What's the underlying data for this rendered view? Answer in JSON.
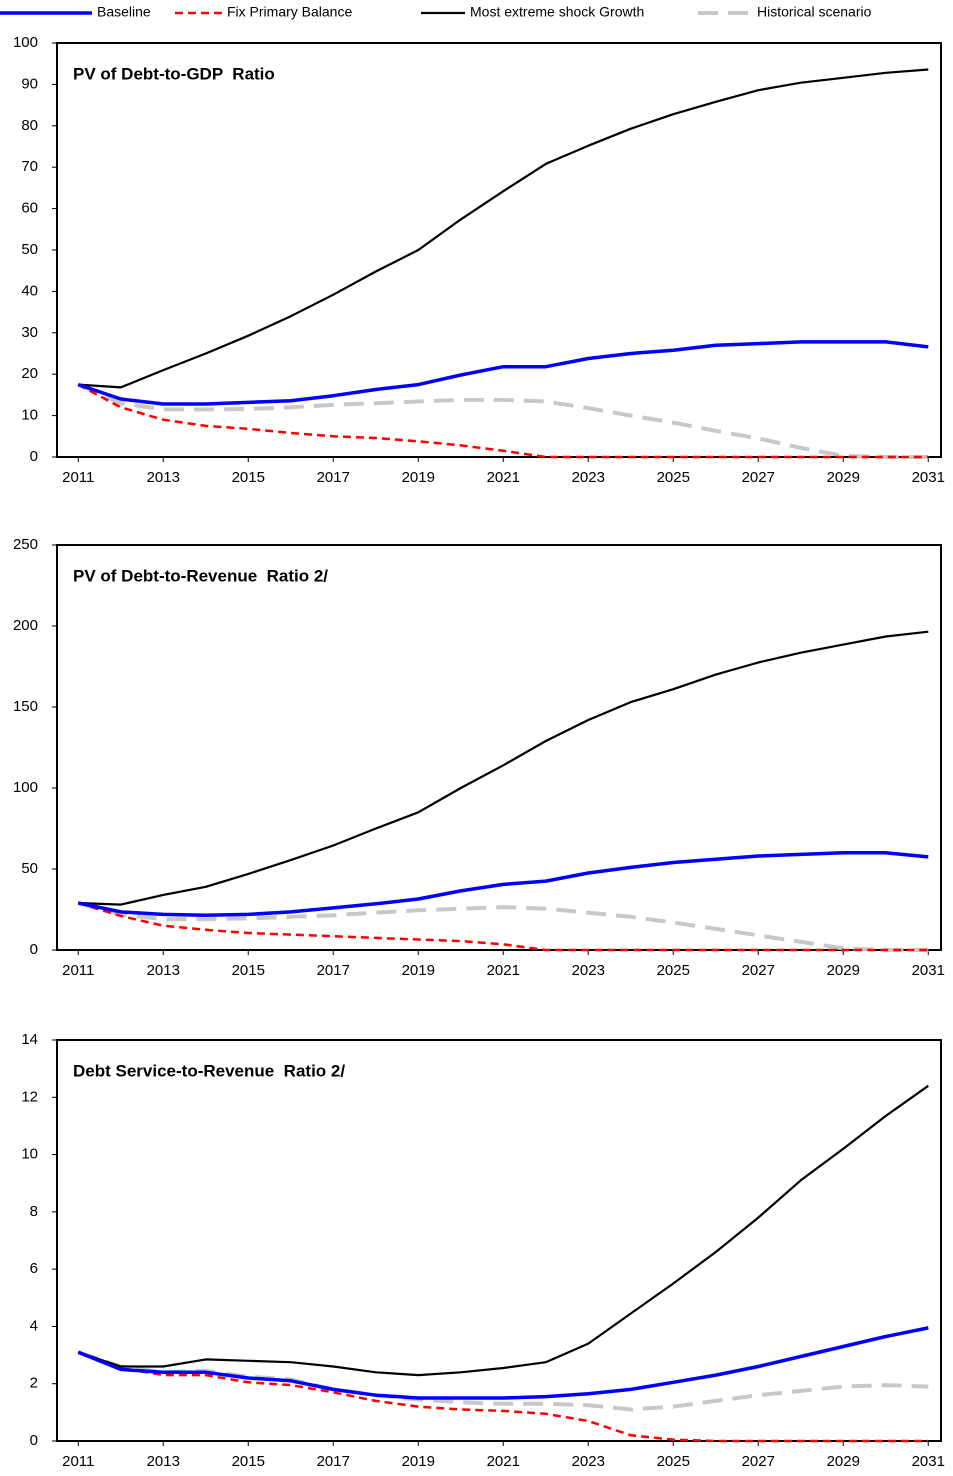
{
  "chart_data": [
    {
      "type": "line",
      "title": "PV of Debt-to-GDP  Ratio",
      "x": [
        2011,
        2012,
        2013,
        2014,
        2015,
        2016,
        2017,
        2018,
        2019,
        2020,
        2021,
        2022,
        2023,
        2024,
        2025,
        2026,
        2027,
        2028,
        2029,
        2030,
        2031
      ],
      "xlim": [
        2010.5,
        2031.3
      ],
      "xticks": [
        2011,
        2013,
        2015,
        2017,
        2019,
        2021,
        2023,
        2025,
        2027,
        2029,
        2031
      ],
      "ylim": [
        0,
        100
      ],
      "yticks": [
        0,
        10,
        20,
        30,
        40,
        50,
        60,
        70,
        80,
        90,
        100
      ],
      "series": [
        {
          "name": "Baseline",
          "color": "#0000ff",
          "values": [
            17.5,
            14,
            12.8,
            12.8,
            13.2,
            13.6,
            14.8,
            16.3,
            17.5,
            19.8,
            21.8,
            21.8,
            23.8,
            25,
            25.8,
            27,
            27.4,
            27.8,
            27.8,
            27.8,
            26.6
          ]
        },
        {
          "name": "Fix Primary Balance",
          "color": "#ff0000",
          "values": [
            17.5,
            12,
            9,
            7.5,
            6.8,
            5.8,
            5,
            4.6,
            3.8,
            2.8,
            1.5,
            0,
            0,
            0,
            0,
            0,
            0,
            0,
            0,
            0,
            0
          ]
        },
        {
          "name": "Most extreme shock Growth",
          "color": "#000000",
          "values": [
            17.5,
            16.8,
            21,
            25,
            29.3,
            34,
            39.2,
            44.8,
            50,
            57.4,
            64.2,
            70.8,
            75.2,
            79.3,
            82.8,
            85.8,
            88.6,
            90.4,
            91.6,
            92.8,
            93.6
          ]
        },
        {
          "name": "Historical scenario",
          "color": "#c8c8c8",
          "values": [
            17.5,
            13,
            11.5,
            11.5,
            11.6,
            12,
            12.6,
            13,
            13.4,
            13.8,
            13.8,
            13.4,
            11.8,
            10,
            8.3,
            6.3,
            4.5,
            2.2,
            0.3,
            0,
            0
          ]
        }
      ]
    },
    {
      "type": "line",
      "title": "PV of Debt-to-Revenue  Ratio 2/",
      "x": [
        2011,
        2012,
        2013,
        2014,
        2015,
        2016,
        2017,
        2018,
        2019,
        2020,
        2021,
        2022,
        2023,
        2024,
        2025,
        2026,
        2027,
        2028,
        2029,
        2030,
        2031
      ],
      "xlim": [
        2010.5,
        2031.3
      ],
      "xticks": [
        2011,
        2013,
        2015,
        2017,
        2019,
        2021,
        2023,
        2025,
        2027,
        2029,
        2031
      ],
      "ylim": [
        0,
        250
      ],
      "yticks": [
        0,
        50,
        100,
        150,
        200,
        250
      ],
      "series": [
        {
          "color": "#0000ff",
          "values": [
            29,
            23.5,
            22,
            21.5,
            22,
            23.5,
            26,
            28.5,
            31.5,
            36.5,
            40.5,
            42.5,
            47.5,
            51,
            54,
            56,
            58,
            59,
            60,
            60,
            57.5
          ]
        },
        {
          "color": "#ff0000",
          "values": [
            29,
            21,
            15,
            12.5,
            10.5,
            9.5,
            8.5,
            7.5,
            6.5,
            5.5,
            3.5,
            0,
            0,
            0,
            0,
            0,
            0,
            0,
            0,
            0,
            0
          ]
        },
        {
          "color": "#000000",
          "values": [
            29,
            28,
            34,
            39,
            47,
            55.5,
            64.5,
            75,
            85,
            100,
            114,
            129,
            142,
            153,
            161,
            170,
            177.5,
            183.5,
            188.5,
            193.5,
            196.5
          ]
        },
        {
          "color": "#c8c8c8",
          "values": [
            29,
            22,
            19,
            19,
            19.5,
            20.5,
            21.5,
            23,
            24.5,
            25.5,
            26.5,
            25.5,
            23,
            20.5,
            17,
            13,
            9,
            5,
            1,
            0,
            0
          ]
        }
      ]
    },
    {
      "type": "line",
      "title": "Debt Service-to-Revenue  Ratio 2/",
      "x": [
        2011,
        2012,
        2013,
        2014,
        2015,
        2016,
        2017,
        2018,
        2019,
        2020,
        2021,
        2022,
        2023,
        2024,
        2025,
        2026,
        2027,
        2028,
        2029,
        2030,
        2031
      ],
      "xlim": [
        2010.5,
        2031.3
      ],
      "xticks": [
        2011,
        2013,
        2015,
        2017,
        2019,
        2021,
        2023,
        2025,
        2027,
        2029,
        2031
      ],
      "ylim": [
        0,
        14
      ],
      "yticks": [
        0,
        2,
        4,
        6,
        8,
        10,
        12,
        14
      ],
      "series": [
        {
          "color": "#0000ff",
          "values": [
            3.1,
            2.5,
            2.4,
            2.4,
            2.2,
            2.1,
            1.8,
            1.6,
            1.5,
            1.5,
            1.5,
            1.55,
            1.65,
            1.8,
            2.05,
            2.3,
            2.6,
            2.95,
            3.3,
            3.65,
            3.95
          ]
        },
        {
          "color": "#ff0000",
          "values": [
            3.1,
            2.55,
            2.3,
            2.3,
            2.05,
            1.95,
            1.7,
            1.4,
            1.2,
            1.1,
            1.05,
            0.95,
            0.7,
            0.2,
            0.05,
            0,
            0,
            0,
            0,
            0,
            0
          ]
        },
        {
          "color": "#000000",
          "values": [
            3.1,
            2.6,
            2.6,
            2.85,
            2.8,
            2.75,
            2.6,
            2.4,
            2.3,
            2.4,
            2.55,
            2.75,
            3.4,
            4.45,
            5.5,
            6.6,
            7.8,
            9.1,
            10.2,
            11.35,
            12.4
          ]
        },
        {
          "color": "#c8c8c8",
          "values": [
            3.1,
            2.6,
            2.4,
            2.45,
            2.25,
            2.15,
            1.8,
            1.6,
            1.45,
            1.35,
            1.3,
            1.3,
            1.25,
            1.1,
            1.2,
            1.4,
            1.6,
            1.75,
            1.9,
            1.95,
            1.9
          ]
        }
      ]
    }
  ]
}
